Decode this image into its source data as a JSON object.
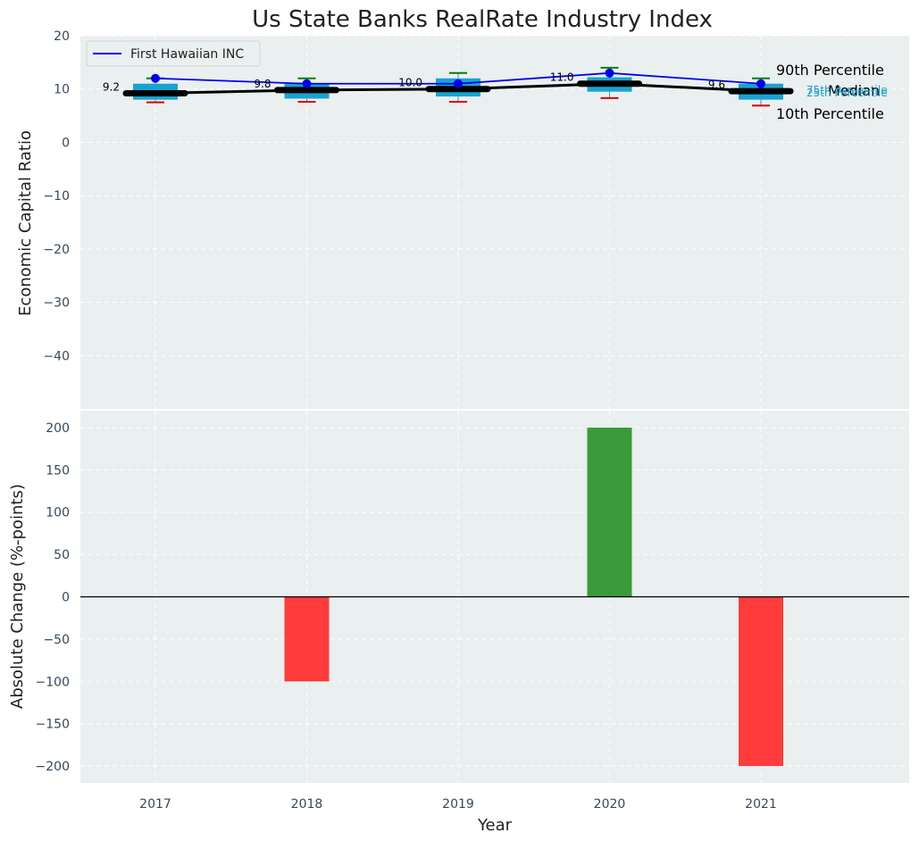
{
  "chart_data": [
    {
      "type": "box",
      "title": "Us State Banks RealRate Industry Index",
      "ylabel": "Economic Capital Ratio",
      "xlabel": "",
      "ylim": [
        -50,
        20
      ],
      "yticks": [
        20,
        10,
        0,
        -10,
        -20,
        -30,
        -40
      ],
      "categories": [
        "2017",
        "2018",
        "2019",
        "2020",
        "2021"
      ],
      "grid": true,
      "legend": {
        "position": "top-left",
        "entries": [
          "First Hawaiian INC"
        ]
      },
      "boxes": [
        {
          "p10": 7.5,
          "p25": 8.0,
          "median": 9.2,
          "p75": 11.0,
          "p90": 12.0
        },
        {
          "p10": 7.6,
          "p25": 8.2,
          "median": 9.8,
          "p75": 11.0,
          "p90": 12.0
        },
        {
          "p10": 7.6,
          "p25": 8.6,
          "median": 10.0,
          "p75": 12.0,
          "p90": 13.0
        },
        {
          "p10": 8.3,
          "p25": 9.5,
          "median": 11.0,
          "p75": 12.2,
          "p90": 14.0
        },
        {
          "p10": 6.9,
          "p25": 8.0,
          "median": 9.6,
          "p75": 11.0,
          "p90": 12.0
        }
      ],
      "median_labels": [
        "9.2",
        "9.8",
        "10.0",
        "11.0",
        "9.6"
      ],
      "series": [
        {
          "name": "First Hawaiian INC",
          "values": [
            12.0,
            11.0,
            11.0,
            13.0,
            11.0
          ],
          "color": "#0000ee"
        }
      ],
      "annotations": {
        "p90": "90th Percentile",
        "p75": "75th Percentile",
        "median": "Median",
        "p25": "25th Percentile",
        "p10": "10th Percentile"
      },
      "colors": {
        "box": "#1aa3d0",
        "median_line": "#000000",
        "whisker_top": "#008000",
        "whisker_bottom": "#dd0000"
      }
    },
    {
      "type": "bar",
      "ylabel": "Absolute Change (%-points)",
      "xlabel": "Year",
      "ylim": [
        -220,
        220
      ],
      "yticks": [
        200,
        150,
        100,
        50,
        0,
        -50,
        -100,
        -150,
        -200
      ],
      "categories": [
        "2017",
        "2018",
        "2019",
        "2020",
        "2021"
      ],
      "values": [
        0,
        -100,
        0,
        200,
        -200
      ],
      "grid": true,
      "colors": {
        "positive": "#3a9b3a",
        "negative": "#ff3b3b"
      }
    }
  ]
}
